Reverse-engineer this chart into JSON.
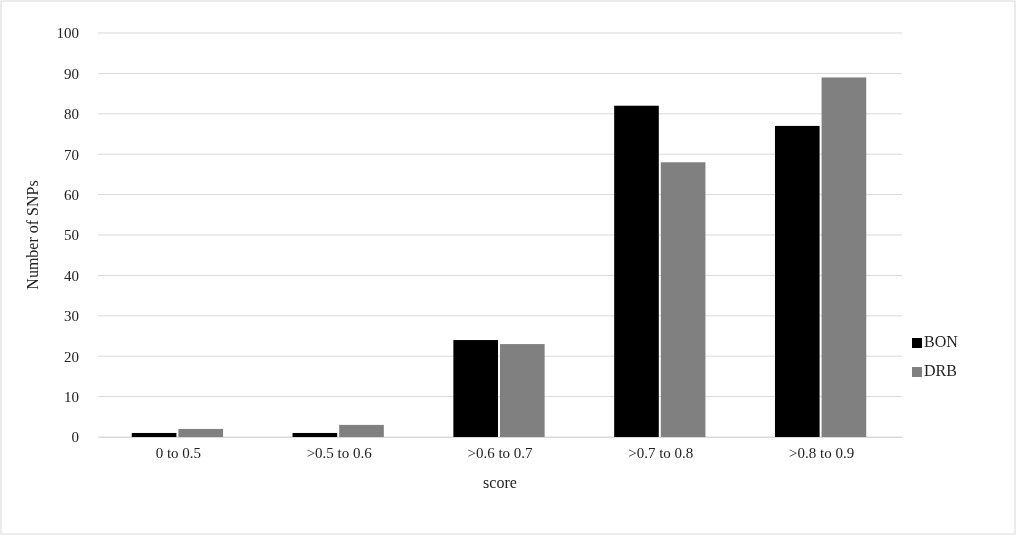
{
  "chart_data": {
    "type": "bar",
    "xlabel": "score",
    "ylabel": "Number of SNPs",
    "categories": [
      "0 to 0.5",
      ">0.5 to 0.6",
      ">0.6 to 0.7",
      ">0.7 to 0.8",
      ">0.8 to 0.9"
    ],
    "series": [
      {
        "name": "BON",
        "color": "#000000",
        "values": [
          1,
          1,
          24,
          82,
          77
        ]
      },
      {
        "name": "DRB",
        "color": "#808080",
        "values": [
          2,
          3,
          23,
          68,
          89
        ]
      }
    ],
    "ylim": [
      0,
      100
    ],
    "yticks": [
      0,
      10,
      20,
      30,
      40,
      50,
      60,
      70,
      80,
      90,
      100
    ],
    "grid": "y",
    "legend": "right"
  }
}
